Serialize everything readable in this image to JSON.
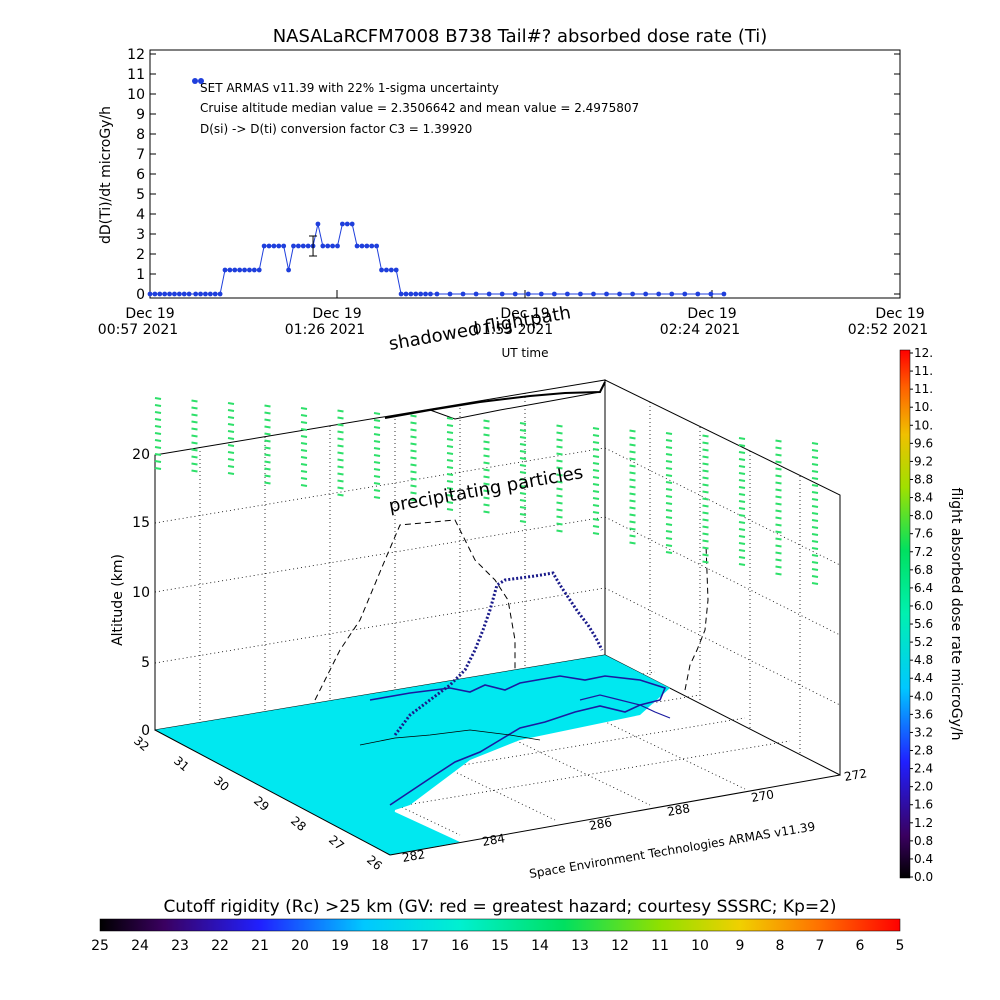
{
  "top_chart": {
    "title": "NASALaRCFM7008  B738 Tail#? absorbed dose rate (Ti)",
    "ylabel": "dD(Ti)/dt microGy/h",
    "xlabel": "UT time",
    "annotations": [
      "SET ARMAS v11.39 with 22% 1-sigma uncertainty",
      "Cruise altitude median value = 2.3506642 and mean value = 2.4975807",
      "D(si) -> D(ti) conversion factor C3 = 1.39920"
    ],
    "x_ticks": [
      {
        "date": "Dec 19",
        "time": "00:57 2021"
      },
      {
        "date": "Dec 19",
        "time": "01:26 2021"
      },
      {
        "date": "Dec 19",
        "time": "01:55 2021"
      },
      {
        "date": "Dec 19",
        "time": "02:24 2021"
      },
      {
        "date": "Dec 19",
        "time": "02:52 2021"
      }
    ],
    "y_ticks": [
      "0",
      "1",
      "2",
      "3",
      "4",
      "5",
      "6",
      "7",
      "8",
      "9",
      "10",
      "11",
      "12"
    ]
  },
  "chart_data": [
    {
      "type": "scatter",
      "title": "NASALaRCFM7008  B738 Tail#? absorbed dose rate (Ti)",
      "xlabel": "UT time",
      "ylabel": "dD(Ti)/dt microGy/h",
      "xlim": [
        "Dec 19 00:57 2021",
        "Dec 19 02:52 2021"
      ],
      "ylim": [
        0,
        12
      ],
      "grid": false,
      "series": [
        {
          "marker_color": "#1f3fdc",
          "x": [
            "00:57:00",
            "00:57:45",
            "00:58:30",
            "00:59:15",
            "01:00:00",
            "01:00:45",
            "01:01:30",
            "01:02:15",
            "01:03:00",
            "01:04:00",
            "01:04:45",
            "01:05:30",
            "01:06:15",
            "01:07:00",
            "01:07:45",
            "01:08:30",
            "01:09:15",
            "01:10:00",
            "01:10:45",
            "01:11:30",
            "01:12:15",
            "01:13:00",
            "01:13:45",
            "01:14:30",
            "01:15:15",
            "01:16:00",
            "01:16:45",
            "01:17:30",
            "01:18:15",
            "01:19:00",
            "01:19:45",
            "01:20:30",
            "01:21:15",
            "01:22:00",
            "01:22:45",
            "01:23:30",
            "01:24:15",
            "01:25:00",
            "01:25:45",
            "01:26:30",
            "01:27:15",
            "01:28:00",
            "01:28:45",
            "01:29:30",
            "01:30:15",
            "01:31:00",
            "01:31:45",
            "01:32:30",
            "01:33:15",
            "01:34:00",
            "01:34:45",
            "01:35:30",
            "01:36:15",
            "01:37:00",
            "01:37:45",
            "01:38:30",
            "01:39:15",
            "01:40:00",
            "01:41:00",
            "01:43:00",
            "01:45:00",
            "01:47:00",
            "01:49:00",
            "01:51:00",
            "01:53:00",
            "01:55:00",
            "01:57:00",
            "01:59:00",
            "02:01:00",
            "02:03:00",
            "02:05:00",
            "02:07:00",
            "02:09:00",
            "02:11:00",
            "02:13:00",
            "02:15:00",
            "02:17:00",
            "02:19:00",
            "02:21:00",
            "02:23:00",
            "02:25:00"
          ],
          "y": [
            0,
            0,
            0,
            0,
            0,
            0,
            0,
            0,
            0,
            0,
            0,
            0,
            0,
            0,
            0,
            1.2,
            1.2,
            1.2,
            1.2,
            1.2,
            1.2,
            1.2,
            1.2,
            2.4,
            2.4,
            2.4,
            2.4,
            2.4,
            1.2,
            2.4,
            2.4,
            2.4,
            2.4,
            2.4,
            3.5,
            2.4,
            2.4,
            2.4,
            2.4,
            3.5,
            3.5,
            3.5,
            2.4,
            2.4,
            2.4,
            2.4,
            2.4,
            1.2,
            1.2,
            1.2,
            1.2,
            0,
            0,
            0,
            0,
            0,
            0,
            0,
            0,
            0,
            0,
            0,
            0,
            0,
            0,
            0,
            0,
            0,
            0,
            0,
            0,
            0,
            0,
            0,
            0,
            0,
            0,
            0,
            0,
            0,
            0
          ]
        }
      ],
      "error_bar": {
        "x": "01:22:00",
        "y": 2.4,
        "err": 0.5
      }
    },
    {
      "type": "scatter",
      "title": "",
      "description_labels": [
        "shadowed flightpath",
        "precipitating particles"
      ],
      "ylabel": "Altitude (km)",
      "z_ticks": [
        "0",
        "5",
        "10",
        "15",
        "20"
      ],
      "lat_ticks": [
        "32",
        "31",
        "30",
        "29",
        "28",
        "27",
        "26"
      ],
      "lon_ticks": [
        "282",
        "284",
        "286",
        "288",
        "270",
        "272"
      ],
      "credit": "Space Environment Technologies ARMAS v11.39",
      "colorbar_label": "flight absorbed dose rate microGy/h",
      "colorbar_ticks": [
        "0.0",
        "0.4",
        "0.8",
        "1.2",
        "1.6",
        "2.0",
        "2.4",
        "2.8",
        "3.2",
        "3.6",
        "4.0",
        "4.4",
        "4.8",
        "5.2",
        "5.6",
        "6.0",
        "6.4",
        "6.8",
        "7.2",
        "7.6",
        "8.0",
        "8.4",
        "8.8",
        "9.2",
        "9.6",
        "10.",
        "10.",
        "11.",
        "11.",
        "12."
      ]
    },
    {
      "type": "heatmap",
      "title": "Cutoff rigidity (Rc) >25 km (GV: red = greatest hazard; courtesy SSSRC; Kp=2)",
      "colorbar_ticks": [
        "25",
        "24",
        "23",
        "22",
        "21",
        "20",
        "19",
        "18",
        "17",
        "16",
        "15",
        "14",
        "13",
        "12",
        "11",
        "10",
        "9",
        "8",
        "7",
        "6",
        "5"
      ]
    }
  ],
  "colors": {
    "marker": "#1f3fdc",
    "ocean": "#00e8f0",
    "precip": "#2ee06a",
    "coast": "#1a1aa0"
  }
}
